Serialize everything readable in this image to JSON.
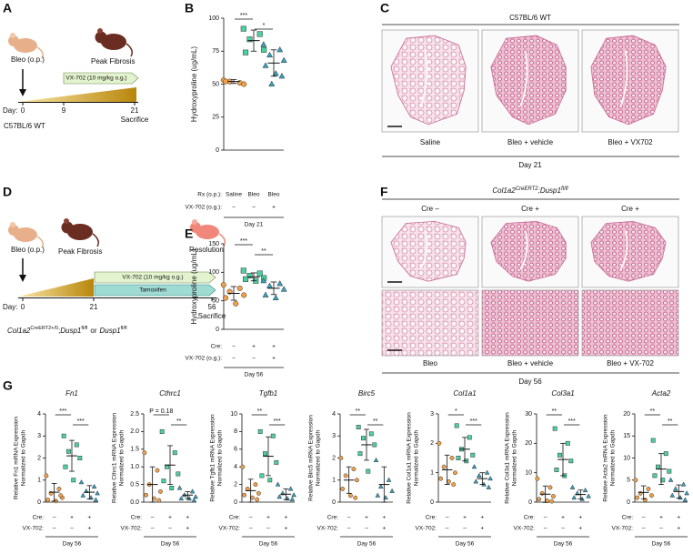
{
  "diagram_a": {
    "letter": "A",
    "start": "Bleo (o.p.)",
    "peak": "Peak Fibrosis",
    "drug": "VX-702 (10 mg/kg o.g.)",
    "day": "Day:",
    "days": [
      "0",
      "9",
      "21"
    ],
    "end": "Sacrifice",
    "strain": "C57BL/6 WT"
  },
  "histology_c": {
    "letter": "C",
    "title": "C57BL/6 WT",
    "images": [
      "Saline",
      "Bleo + vehicle",
      "Bleo + VX702"
    ],
    "footer": "Day 21"
  },
  "diagram_d": {
    "letter": "D",
    "start": "Bleo (o.p.)",
    "peak": "Peak Fibrosis",
    "resolution": "Resolution",
    "drug": "VX-702 (10 mg/kg o.g.)",
    "tamoxifen": "Tamoxifen",
    "day": "Day:",
    "days": [
      "0",
      "21",
      "56"
    ],
    "end": "Sacrifice",
    "genotype": [
      "Col1a2",
      "CreERT2+/0",
      ";",
      "Dusp1",
      "fl/fl",
      "or",
      "Dusp1",
      "fl/fl"
    ]
  },
  "histology_f": {
    "letter": "F",
    "title": [
      "Col1a2",
      "CreERT2",
      ";Dusp1",
      "fl/fl"
    ],
    "columns": [
      "Cre –",
      "Cre +",
      "Cre +"
    ],
    "images": [
      "Bleo",
      "Bleo + vehicle",
      "Bleo + VX-702"
    ],
    "footer": "Day 56"
  },
  "panel_g": {
    "letter": "G"
  },
  "chart_data": [
    {
      "type": "scatter",
      "letter": "B",
      "ylabel": "Hydroxyproline (ug/mL)",
      "ylim": [
        0,
        100
      ],
      "yticks": [
        0,
        25,
        50,
        75,
        100
      ],
      "groups": [
        {
          "color": "#f0a04b",
          "marker": "circle",
          "values": [
            53,
            51,
            52,
            50,
            52
          ],
          "mean": 52,
          "sd": 1.5
        },
        {
          "color": "#49d1a0",
          "marker": "square",
          "values": [
            92,
            88,
            84,
            76,
            74
          ],
          "mean": 83,
          "sd": 8
        },
        {
          "color": "#3aa0bf",
          "marker": "triangle",
          "values": [
            80,
            76,
            72,
            68,
            64,
            58,
            56,
            50
          ],
          "mean": 66,
          "sd": 10
        }
      ],
      "rows": [
        {
          "label": "Rx (o.p.):",
          "values": [
            "Saline",
            "Bleo",
            "Bleo"
          ]
        },
        {
          "label": "VX-702 (o.g.):",
          "values": [
            "–",
            "–",
            "+"
          ]
        }
      ],
      "footer": "Day 21",
      "significance": [
        "***",
        "*"
      ]
    },
    {
      "type": "scatter",
      "letter": "E",
      "ylabel": "Hydroxyproline (ug/mL)",
      "ylim": [
        0,
        150
      ],
      "yticks": [
        0,
        50,
        100,
        150
      ],
      "groups": [
        {
          "color": "#f0a04b",
          "marker": "circle",
          "values": [
            78,
            72,
            66,
            60,
            55,
            45
          ],
          "mean": 63,
          "sd": 12
        },
        {
          "color": "#49d1a0",
          "marker": "square",
          "values": [
            103,
            98,
            94,
            90,
            88,
            85
          ],
          "mean": 92,
          "sd": 7
        },
        {
          "color": "#3aa0bf",
          "marker": "triangle",
          "values": [
            85,
            80,
            76,
            70,
            60,
            55
          ],
          "mean": 72,
          "sd": 11
        }
      ],
      "rows": [
        {
          "label": "Cre:",
          "values": [
            "–",
            "+",
            "+"
          ]
        },
        {
          "label": "VX-702 (o.g.):",
          "values": [
            "–",
            "–",
            "+"
          ]
        }
      ],
      "footer": "Day 56",
      "significance": [
        "***",
        "**"
      ]
    },
    {
      "type": "scatter",
      "title": "Fn1",
      "ylabel": [
        "Relative Fn1 mRNA Expression",
        "Normalized to Gapdh"
      ],
      "ylim": [
        0,
        4
      ],
      "yticks": [
        0,
        1,
        2,
        3,
        4
      ],
      "groups": [
        {
          "color": "#f0a04b",
          "marker": "circle",
          "values": [
            1.2,
            0.6,
            0.4,
            0.2,
            0.1,
            0.05,
            0.3
          ],
          "mean": 0.45,
          "sd": 0.4
        },
        {
          "color": "#49d1a0",
          "marker": "square",
          "values": [
            3.0,
            2.6,
            2.3,
            2.0,
            1.6,
            1.0
          ],
          "mean": 2.1,
          "sd": 0.7
        },
        {
          "color": "#3aa0bf",
          "marker": "triangle",
          "values": [
            0.9,
            0.7,
            0.5,
            0.4,
            0.3,
            0.2,
            0.1
          ],
          "mean": 0.45,
          "sd": 0.3
        }
      ],
      "rows": [
        {
          "label": "Cre:",
          "values": [
            "–",
            "+",
            "+"
          ]
        },
        {
          "label": "VX-702:",
          "values": [
            "–",
            "–",
            "+"
          ]
        }
      ],
      "footer": "Day 56",
      "significance": [
        "***",
        "***"
      ]
    },
    {
      "type": "scatter",
      "title": "Cthrc1",
      "ylabel": [
        "Relative Cthrc1 mRNA Expression",
        "Normalized to Gapdh"
      ],
      "ylim": [
        0,
        2.5
      ],
      "yticks": [
        {
          "value": 0,
          "label": "0.0"
        },
        0.5,
        {
          "value": 1,
          "label": "1.0"
        },
        1.5,
        {
          "value": 2,
          "label": "2.0"
        },
        2.5
      ],
      "groups": [
        {
          "color": "#f0a04b",
          "marker": "circle",
          "values": [
            1.4,
            0.9,
            0.5,
            0.3,
            0.2,
            0.1,
            0.05
          ],
          "mean": 0.5,
          "sd": 0.5
        },
        {
          "color": "#49d1a0",
          "marker": "square",
          "values": [
            2.0,
            1.4,
            1.0,
            0.8,
            0.6,
            0.4
          ],
          "mean": 1.05,
          "sd": 0.55
        },
        {
          "color": "#3aa0bf",
          "marker": "triangle",
          "values": [
            0.4,
            0.3,
            0.2,
            0.15,
            0.1,
            0.1,
            0.05
          ],
          "mean": 0.2,
          "sd": 0.1
        }
      ],
      "rows": [
        {
          "label": "Cre:",
          "values": [
            "–",
            "+",
            "+"
          ]
        },
        {
          "label": "VX-702:",
          "values": [
            "–",
            "–",
            "+"
          ]
        }
      ],
      "footer": "Day 56",
      "significance": [
        "P = 0.18",
        "**"
      ]
    },
    {
      "type": "scatter",
      "title": "Tgfb1",
      "ylabel": [
        "Relative Tgfb1 mRNA Expression",
        "Normalized to Gapdh"
      ],
      "ylim": [
        0,
        10
      ],
      "yticks": [
        0,
        2,
        4,
        6,
        8,
        10
      ],
      "groups": [
        {
          "color": "#f0a04b",
          "marker": "circle",
          "values": [
            4,
            2,
            1.5,
            1,
            0.8,
            0.5,
            0.3
          ],
          "mean": 1.3,
          "sd": 1.3
        },
        {
          "color": "#49d1a0",
          "marker": "square",
          "values": [
            8,
            7.5,
            5.5,
            4.5,
            3,
            2.5
          ],
          "mean": 5.2,
          "sd": 2.2
        },
        {
          "color": "#3aa0bf",
          "marker": "triangle",
          "values": [
            2,
            1.5,
            1,
            0.8,
            0.6,
            0.4,
            0.3
          ],
          "mean": 0.9,
          "sd": 0.6
        }
      ],
      "rows": [
        {
          "label": "Cre:",
          "values": [
            "–",
            "+",
            "+"
          ]
        },
        {
          "label": "VX-702:",
          "values": [
            "–",
            "–",
            "+"
          ]
        }
      ],
      "footer": "Day 56",
      "significance": [
        "**",
        "***"
      ]
    },
    {
      "type": "scatter",
      "title": "Birc5",
      "ylabel": [
        "Relative Birc5 mRNA Expression",
        "Normalized to Gapdh"
      ],
      "ylim": [
        0,
        4
      ],
      "yticks": [
        0,
        1,
        2,
        3,
        4
      ],
      "groups": [
        {
          "color": "#f0a04b",
          "marker": "circle",
          "values": [
            2.0,
            1.5,
            1.2,
            1.0,
            0.6,
            0.3,
            0.2
          ],
          "mean": 1.0,
          "sd": 0.6
        },
        {
          "color": "#49d1a0",
          "marker": "square",
          "values": [
            3.4,
            3.1,
            2.9,
            2.6,
            2.2,
            1.4
          ],
          "mean": 2.6,
          "sd": 0.7
        },
        {
          "color": "#3aa0bf",
          "marker": "triangle",
          "values": [
            1.9,
            1.0,
            0.7,
            0.5,
            0.3,
            0.2
          ],
          "mean": 0.8,
          "sd": 0.8
        }
      ],
      "rows": [
        {
          "label": "Cre:",
          "values": [
            "–",
            "+",
            "+"
          ]
        },
        {
          "label": "VX-702:",
          "values": [
            "–",
            "–",
            "+"
          ]
        }
      ],
      "footer": "Day 56",
      "significance": [
        "**",
        "**"
      ]
    },
    {
      "type": "scatter",
      "title": "Col1a1",
      "ylabel": [
        "Relative Col1a1 mRNA Expression",
        "Normalized to Gapdh"
      ],
      "ylim": [
        0,
        3
      ],
      "yticks": [
        0,
        1,
        2,
        3
      ],
      "groups": [
        {
          "color": "#f0a04b",
          "marker": "circle",
          "values": [
            2.0,
            1.5,
            1.2,
            1.0,
            0.8,
            0.7,
            0.6
          ],
          "mean": 1.1,
          "sd": 0.5
        },
        {
          "color": "#49d1a0",
          "marker": "square",
          "values": [
            2.6,
            2.2,
            1.8,
            1.6,
            1.5,
            1.4
          ],
          "mean": 1.8,
          "sd": 0.4
        },
        {
          "color": "#3aa0bf",
          "marker": "triangle",
          "values": [
            1.2,
            1.0,
            0.9,
            0.8,
            0.7,
            0.6,
            0.5
          ],
          "mean": 0.8,
          "sd": 0.2
        }
      ],
      "rows": [
        {
          "label": "Cre:",
          "values": [
            "–",
            "+",
            "+"
          ]
        },
        {
          "label": "VX-702:",
          "values": [
            "–",
            "–",
            "+"
          ]
        }
      ],
      "footer": "Day 56",
      "significance": [
        "*",
        "***"
      ]
    },
    {
      "type": "scatter",
      "title": "Col3a1",
      "ylabel": [
        "Relative Col3a1 mRNA Expression",
        "Normalized to Gapdh"
      ],
      "ylim": [
        0,
        30
      ],
      "yticks": [
        0,
        10,
        20,
        30
      ],
      "groups": [
        {
          "color": "#f0a04b",
          "marker": "circle",
          "values": [
            8,
            5,
            3,
            2,
            1,
            0.5,
            0.3
          ],
          "mean": 2.7,
          "sd": 2.8
        },
        {
          "color": "#49d1a0",
          "marker": "square",
          "values": [
            25,
            20,
            16,
            14,
            11,
            9
          ],
          "mean": 14.5,
          "sd": 5.5
        },
        {
          "color": "#3aa0bf",
          "marker": "triangle",
          "values": [
            5,
            4,
            3,
            2,
            1.5,
            1
          ],
          "mean": 2.6,
          "sd": 1.5
        }
      ],
      "rows": [
        {
          "label": "Cre:",
          "values": [
            "–",
            "+",
            "+"
          ]
        },
        {
          "label": "VX-702:",
          "values": [
            "–",
            "–",
            "+"
          ]
        }
      ],
      "footer": "Day 56",
      "significance": [
        "**",
        "***"
      ]
    },
    {
      "type": "scatter",
      "title": "Acta2",
      "ylabel": [
        "Relative Acta2 mRNA Expression",
        "Normalized to Gapdh"
      ],
      "ylim": [
        0,
        20
      ],
      "yticks": [
        0,
        5,
        10,
        15,
        20
      ],
      "groups": [
        {
          "color": "#f0a04b",
          "marker": "circle",
          "values": [
            5,
            3,
            2,
            1.5,
            1,
            0.5
          ],
          "mean": 2.2,
          "sd": 1.5
        },
        {
          "color": "#49d1a0",
          "marker": "square",
          "values": [
            14,
            11,
            8,
            7,
            6,
            5
          ],
          "mean": 7.5,
          "sd": 3.5
        },
        {
          "color": "#3aa0bf",
          "marker": "triangle",
          "values": [
            5,
            4,
            3,
            2,
            1.5,
            1,
            0.5
          ],
          "mean": 2.4,
          "sd": 1.5
        }
      ],
      "rows": [
        {
          "label": "Cre:",
          "values": [
            "–",
            "+",
            "+"
          ]
        },
        {
          "label": "VX-702:",
          "values": [
            "–",
            "–",
            "+"
          ]
        }
      ],
      "footer": "Day 56",
      "significance": [
        "**",
        "**"
      ]
    }
  ]
}
